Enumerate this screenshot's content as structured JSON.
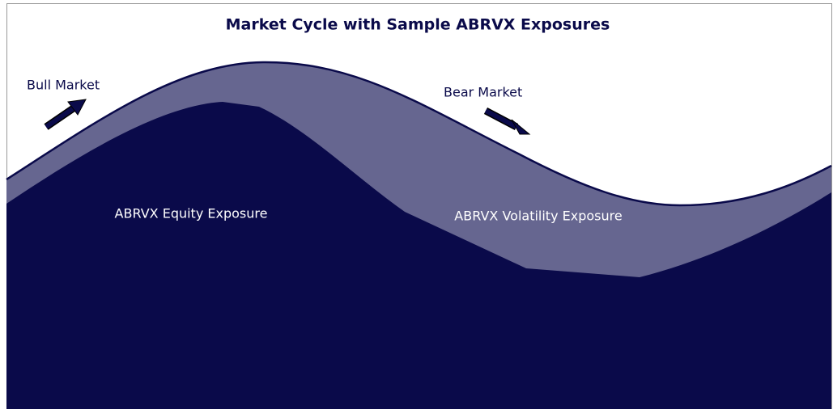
{
  "header": {
    "title": "Market Cycle with Sample ABRVX Exposures"
  },
  "labels": {
    "bull": "Bull Market",
    "bear": "Bear Market",
    "equity": "ABRVX Equity Exposure",
    "volatility": "ABRVX Volatility Exposure"
  }
}
